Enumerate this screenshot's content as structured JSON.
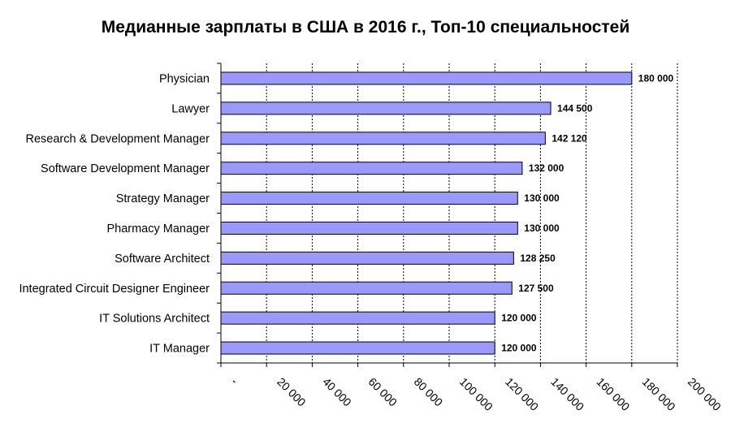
{
  "chart_data": {
    "type": "bar",
    "orientation": "horizontal",
    "title": "Медианные зарплаты в США в 2016 г., Топ-10 специальностей",
    "categories": [
      "Physician",
      "Lawyer",
      "Research & Development Manager",
      "Software Development Manager",
      "Strategy Manager",
      "Pharmacy Manager",
      "Software Architect",
      "Integrated Circuit Designer Engineer",
      "IT Solutions Architect",
      "IT Manager"
    ],
    "values": [
      180000,
      144500,
      142120,
      132000,
      130000,
      130000,
      128250,
      127500,
      120000,
      120000
    ],
    "value_labels": [
      "180 000",
      "144 500",
      "142 120",
      "132 000",
      "130 000",
      "130 000",
      "128 250",
      "127 500",
      "120 000",
      "120 000"
    ],
    "xlim": [
      0,
      200000
    ],
    "x_ticks": [
      0,
      20000,
      40000,
      60000,
      80000,
      100000,
      120000,
      140000,
      160000,
      180000,
      200000
    ],
    "x_tick_labels": [
      "-",
      "20 000",
      "40 000",
      "60 000",
      "80 000",
      "100 000",
      "120 000",
      "140 000",
      "160 000",
      "180 000",
      "200 000"
    ],
    "grid": "vertical-dashed",
    "bar_color": "#9999ff",
    "bar_edge_color": "#000000",
    "grid_color": "#000000"
  }
}
